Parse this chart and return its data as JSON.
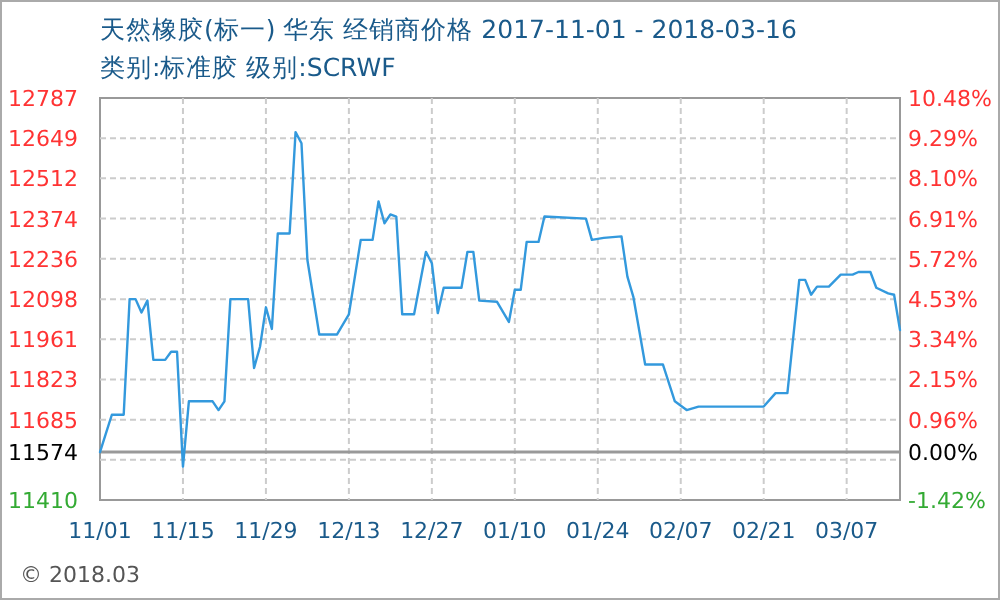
{
  "chart_data": {
    "type": "line",
    "title": "天然橡胶(标一) 华东 经销商价格 2017-11-01 - 2018-03-16",
    "subtitle": "类别:标准胶 级别:SCRWF",
    "x": [
      "2017-11-01",
      "2017-11-02",
      "2017-11-03",
      "2017-11-05",
      "2017-11-06",
      "2017-11-07",
      "2017-11-08",
      "2017-11-09",
      "2017-11-10",
      "2017-11-12",
      "2017-11-13",
      "2017-11-14",
      "2017-11-15",
      "2017-11-16",
      "2017-11-20",
      "2017-11-21",
      "2017-11-22",
      "2017-11-23",
      "2017-11-26",
      "2017-11-27",
      "2017-11-28",
      "2017-11-29",
      "2017-11-30",
      "2017-12-01",
      "2017-12-03",
      "2017-12-04",
      "2017-12-05",
      "2017-12-06",
      "2017-12-08",
      "2017-12-11",
      "2017-12-13",
      "2017-12-15",
      "2017-12-17",
      "2017-12-18",
      "2017-12-19",
      "2017-12-20",
      "2017-12-21",
      "2017-12-22",
      "2017-12-24",
      "2017-12-26",
      "2017-12-27",
      "2017-12-28",
      "2017-12-29",
      "2018-01-01",
      "2018-01-02",
      "2018-01-03",
      "2018-01-04",
      "2018-01-07",
      "2018-01-09",
      "2018-01-10",
      "2018-01-11",
      "2018-01-12",
      "2018-01-14",
      "2018-01-15",
      "2018-01-22",
      "2018-01-23",
      "2018-01-25",
      "2018-01-28",
      "2018-01-29",
      "2018-01-30",
      "2018-02-01",
      "2018-02-04",
      "2018-02-06",
      "2018-02-08",
      "2018-02-10",
      "2018-02-21",
      "2018-02-23",
      "2018-02-25",
      "2018-02-27",
      "2018-02-28",
      "2018-03-01",
      "2018-03-02",
      "2018-03-04",
      "2018-03-06",
      "2018-03-08",
      "2018-03-09",
      "2018-03-11",
      "2018-03-12",
      "2018-03-14",
      "2018-03-15",
      "2018-03-16"
    ],
    "series": [
      {
        "color": "#3399dd",
        "values": [
          11574,
          11638,
          11702,
          11702,
          12098,
          12098,
          12052,
          12093,
          11890,
          11890,
          11918,
          11918,
          11524,
          11748,
          11748,
          11718,
          11748,
          12098,
          12098,
          11862,
          11935,
          12070,
          11996,
          12323,
          12323,
          12670,
          12632,
          12232,
          11977,
          11977,
          12046,
          12301,
          12301,
          12433,
          12358,
          12388,
          12381,
          12046,
          12046,
          12260,
          12221,
          12050,
          12137,
          12137,
          12260,
          12260,
          12093,
          12089,
          12020,
          12130,
          12130,
          12294,
          12294,
          12381,
          12374,
          12301,
          12308,
          12313,
          12175,
          12106,
          11874,
          11874,
          11748,
          11718,
          11730,
          11730,
          11776,
          11776,
          12164,
          12164,
          12113,
          12141,
          12141,
          12182,
          12182,
          12191,
          12191,
          12137,
          12118,
          12113,
          11992
        ]
      }
    ],
    "xlim": [
      "2017-11-01",
      "2018-03-16"
    ],
    "xticks": [
      {
        "value": "2017-11-01",
        "label": "11/01"
      },
      {
        "value": "2017-11-15",
        "label": "11/15"
      },
      {
        "value": "2017-11-29",
        "label": "11/29"
      },
      {
        "value": "2017-12-13",
        "label": "12/13"
      },
      {
        "value": "2017-12-27",
        "label": "12/27"
      },
      {
        "value": "2018-01-10",
        "label": "01/10"
      },
      {
        "value": "2018-01-24",
        "label": "01/24"
      },
      {
        "value": "2018-02-07",
        "label": "02/07"
      },
      {
        "value": "2018-02-21",
        "label": "02/21"
      },
      {
        "value": "2018-03-07",
        "label": "03/07"
      }
    ],
    "ylim": [
      11410,
      12787
    ],
    "yticks": [
      11410,
      {
        "value": 11548,
        "label": null
      },
      11574,
      11685,
      11823,
      11961,
      12098,
      12236,
      12374,
      12512,
      12649,
      12787
    ],
    "y2lim": [
      -1.42,
      10.48
    ],
    "y2ticks": [
      {
        "value": -1.42,
        "label": "-1.42%"
      },
      {
        "value": 0,
        "label": "0.00%"
      },
      {
        "value": 0.96,
        "label": "0.96%"
      },
      {
        "value": 2.15,
        "label": "2.15%"
      },
      {
        "value": 3.34,
        "label": "3.34%"
      },
      {
        "value": 4.53,
        "label": "4.53%"
      },
      {
        "value": 5.72,
        "label": "5.72%"
      },
      {
        "value": 6.91,
        "label": "6.91%"
      },
      {
        "value": 8.1,
        "label": "8.10%"
      },
      {
        "value": 9.29,
        "label": "9.29%"
      },
      {
        "value": 10.48,
        "label": "10.48%"
      }
    ],
    "ref_lines": [
      {
        "axis": "y",
        "value": 11574,
        "color": "#999999"
      }
    ],
    "grid": true,
    "line_style": "solid",
    "marker": "none",
    "annotations": [
      "© 2018.03"
    ]
  }
}
